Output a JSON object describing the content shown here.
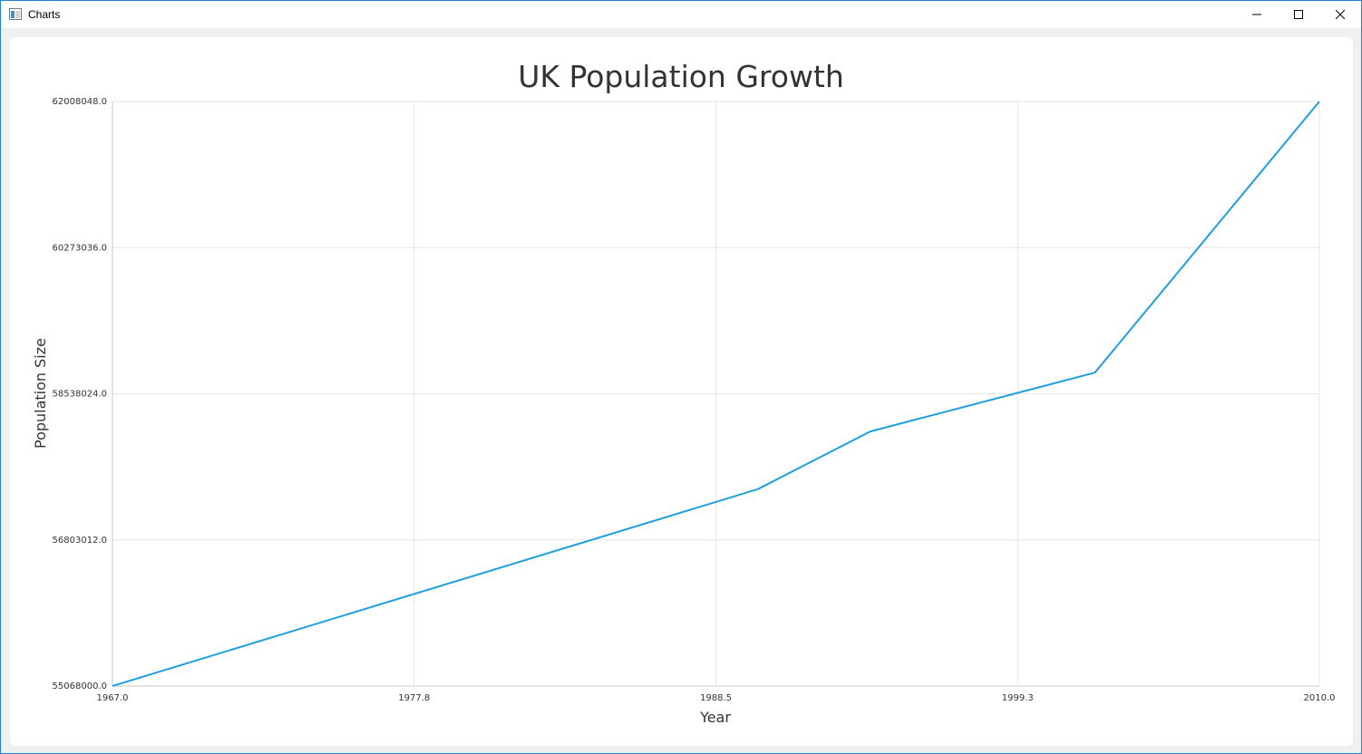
{
  "window": {
    "title": "Charts",
    "icons": {
      "app": "chart-app-icon",
      "minimize": "minimize-icon",
      "maximize": "maximize-icon",
      "close": "close-icon"
    }
  },
  "chart_data": {
    "type": "line",
    "title": "UK Population Growth",
    "xlabel": "Year",
    "ylabel": "Population Size",
    "xlim": [
      1967.0,
      2010.0
    ],
    "ylim": [
      55068000.0,
      62008048.0
    ],
    "x_ticks": [
      "1967.0",
      "1977.8",
      "1988.5",
      "1999.3",
      "2010.0"
    ],
    "y_ticks": [
      "55068000.0",
      "56803012.0",
      "58538024.0",
      "60273036.0",
      "62008048.0"
    ],
    "grid": true,
    "line_color": "#209fdf",
    "series": [
      {
        "x": [
          1967,
          1990,
          1994,
          2002,
          2010
        ],
        "values": [
          55068000,
          57406000,
          58090000,
          58789000,
          62008048
        ]
      }
    ]
  }
}
